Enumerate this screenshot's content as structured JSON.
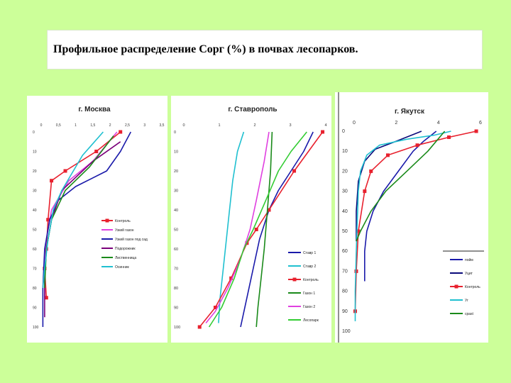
{
  "page": {
    "title": "Профильное распределение Сорг (%) в почвах лесопарков."
  },
  "chart_data": [
    {
      "type": "line",
      "title": "г. Москва",
      "x_ticks": [
        "0",
        "0,5",
        "1",
        "1,5",
        "2",
        "2,5",
        "3",
        "3,5"
      ],
      "y_ticks": [
        "0",
        "10",
        "20",
        "30",
        "40",
        "50",
        "60",
        "70",
        "80",
        "90",
        "100"
      ],
      "xlim": [
        0,
        3.5
      ],
      "ylim": [
        0,
        100
      ],
      "legend_position": "right",
      "series": [
        {
          "name": "Контроль",
          "color": "#e8212e",
          "marker": "square",
          "points": [
            [
              2.3,
              0
            ],
            [
              1.6,
              10
            ],
            [
              0.7,
              20
            ],
            [
              0.3,
              25
            ],
            [
              0.2,
              45
            ],
            [
              0.15,
              60
            ],
            [
              0.1,
              70
            ],
            [
              0.15,
              85
            ]
          ]
        },
        {
          "name": "Узкий газон",
          "color": "#e040e0",
          "marker": "none",
          "points": [
            [
              2.2,
              0
            ],
            [
              1.5,
              15
            ],
            [
              0.8,
              25
            ],
            [
              0.3,
              40
            ],
            [
              0.15,
              55
            ],
            [
              0.1,
              70
            ],
            [
              0.1,
              85
            ]
          ]
        },
        {
          "name": "Узкий газон под сад",
          "color": "#1a1aaa",
          "marker": "none",
          "points": [
            [
              2.6,
              0
            ],
            [
              2.3,
              10
            ],
            [
              1.9,
              20
            ],
            [
              1.0,
              28
            ],
            [
              0.5,
              35
            ],
            [
              0.25,
              45
            ],
            [
              0.1,
              60
            ],
            [
              0.05,
              80
            ],
            [
              0.05,
              100
            ]
          ]
        },
        {
          "name": "Подорожник",
          "color": "#7a007a",
          "marker": "none",
          "points": [
            [
              2.3,
              5
            ],
            [
              1.5,
              15
            ],
            [
              0.6,
              30
            ],
            [
              0.3,
              45
            ],
            [
              0.15,
              60
            ],
            [
              0.1,
              75
            ],
            [
              0.1,
              95
            ]
          ]
        },
        {
          "name": "Лиственница",
          "color": "#1a8a1a",
          "marker": "none",
          "points": [
            [
              2.1,
              2
            ],
            [
              1.4,
              18
            ],
            [
              0.7,
              30
            ],
            [
              0.3,
              45
            ],
            [
              0.15,
              60
            ],
            [
              0.1,
              80
            ]
          ]
        },
        {
          "name": "Осинник",
          "color": "#20c0d0",
          "marker": "none",
          "points": [
            [
              1.8,
              0
            ],
            [
              1.2,
              12
            ],
            [
              0.6,
              30
            ],
            [
              0.35,
              40
            ],
            [
              0.2,
              55
            ],
            [
              0.1,
              70
            ],
            [
              0.05,
              80
            ]
          ]
        }
      ]
    },
    {
      "type": "line",
      "title": "г. Ставрополь",
      "x_ticks": [
        "0",
        "1",
        "2",
        "3",
        "4"
      ],
      "y_ticks": [
        "0",
        "10",
        "20",
        "30",
        "40",
        "50",
        "60",
        "70",
        "80",
        "90",
        "100"
      ],
      "xlim": [
        0,
        4.5
      ],
      "ylim": [
        0,
        100
      ],
      "legend_position": "bottom-right",
      "series": [
        {
          "name": "Ставр 1",
          "color": "#1a1aaa",
          "marker": "none",
          "points": [
            [
              4.1,
              0
            ],
            [
              3.8,
              10
            ],
            [
              3.4,
              20
            ],
            [
              3.0,
              30
            ],
            [
              2.7,
              40
            ],
            [
              2.4,
              55
            ],
            [
              2.2,
              70
            ],
            [
              2.0,
              85
            ],
            [
              1.8,
              100
            ]
          ]
        },
        {
          "name": "Ставр 2",
          "color": "#20c0d0",
          "marker": "none",
          "points": [
            [
              1.9,
              0
            ],
            [
              1.7,
              10
            ],
            [
              1.55,
              25
            ],
            [
              1.45,
              40
            ],
            [
              1.35,
              55
            ],
            [
              1.25,
              70
            ],
            [
              1.15,
              85
            ],
            [
              1.1,
              98
            ]
          ]
        },
        {
          "name": "Контроль",
          "color": "#e8212e",
          "marker": "square",
          "points": [
            [
              4.4,
              0
            ],
            [
              3.5,
              20
            ],
            [
              2.7,
              40
            ],
            [
              2.3,
              50
            ],
            [
              2.0,
              57
            ],
            [
              1.5,
              75
            ],
            [
              1.0,
              90
            ],
            [
              0.5,
              100
            ]
          ]
        },
        {
          "name": "Газон 1",
          "color": "#1a8a1a",
          "marker": "none",
          "points": [
            [
              2.8,
              0
            ],
            [
              2.75,
              20
            ],
            [
              2.65,
              40
            ],
            [
              2.55,
              60
            ],
            [
              2.45,
              75
            ],
            [
              2.35,
              90
            ],
            [
              2.3,
              100
            ]
          ]
        },
        {
          "name": "Газон 2",
          "color": "#e040e0",
          "marker": "none",
          "points": [
            [
              2.7,
              0
            ],
            [
              2.55,
              15
            ],
            [
              2.3,
              35
            ],
            [
              2.1,
              50
            ],
            [
              1.8,
              65
            ],
            [
              1.4,
              80
            ],
            [
              1.0,
              92
            ],
            [
              0.7,
              98
            ]
          ]
        },
        {
          "name": "Лесопарк",
          "color": "#33cc33",
          "marker": "none",
          "points": [
            [
              3.9,
              0
            ],
            [
              3.4,
              10
            ],
            [
              3.0,
              20
            ],
            [
              2.6,
              35
            ],
            [
              2.2,
              50
            ],
            [
              1.9,
              60
            ],
            [
              1.6,
              75
            ],
            [
              1.2,
              90
            ],
            [
              0.8,
              100
            ]
          ]
        }
      ]
    },
    {
      "type": "line",
      "title": "г. Якутск",
      "x_ticks": [
        "0",
        "2",
        "4",
        "6"
      ],
      "y_ticks": [
        "0",
        "10",
        "20",
        "30",
        "40",
        "50",
        "60",
        "70",
        "80",
        "90",
        "100"
      ],
      "xlim": [
        0,
        6
      ],
      "ylim": [
        0,
        100
      ],
      "legend_position": "bottom-right",
      "series": [
        {
          "name": "пойм",
          "color": "#1a1aaa",
          "marker": "none",
          "points": [
            [
              3.9,
              0
            ],
            [
              3.3,
              5
            ],
            [
              2.8,
              10
            ],
            [
              2.1,
              20
            ],
            [
              1.4,
              30
            ],
            [
              0.9,
              40
            ],
            [
              0.6,
              50
            ],
            [
              0.5,
              60
            ],
            [
              0.5,
              75
            ]
          ]
        },
        {
          "name": "Уцит",
          "color": "#0a0a7a",
          "marker": "none",
          "points": [
            [
              3.2,
              0
            ],
            [
              2.0,
              5
            ],
            [
              1.0,
              9
            ],
            [
              0.5,
              15
            ],
            [
              0.2,
              25
            ],
            [
              0.1,
              40
            ],
            [
              0.1,
              55
            ]
          ]
        },
        {
          "name": "Контроль",
          "color": "#e8212e",
          "marker": "square",
          "points": [
            [
              5.8,
              0
            ],
            [
              4.5,
              3
            ],
            [
              3.0,
              7
            ],
            [
              1.6,
              12
            ],
            [
              0.8,
              20
            ],
            [
              0.5,
              30
            ],
            [
              0.2,
              50
            ],
            [
              0.1,
              70
            ],
            [
              0.05,
              90
            ]
          ]
        },
        {
          "name": "Уг",
          "color": "#20c0d0",
          "marker": "none",
          "points": [
            [
              4.6,
              0
            ],
            [
              3.8,
              2
            ],
            [
              2.5,
              4
            ],
            [
              1.2,
              7
            ],
            [
              0.6,
              12
            ],
            [
              0.3,
              20
            ],
            [
              0.2,
              30
            ],
            [
              0.15,
              45
            ],
            [
              0.1,
              60
            ],
            [
              0.05,
              80
            ],
            [
              0.05,
              95
            ]
          ]
        },
        {
          "name": "cpast",
          "color": "#1a8a1a",
          "marker": "none",
          "points": [
            [
              4.3,
              0
            ],
            [
              3.5,
              10
            ],
            [
              2.5,
              20
            ],
            [
              1.5,
              30
            ],
            [
              0.8,
              40
            ],
            [
              0.3,
              50
            ],
            [
              0.1,
              55
            ]
          ]
        }
      ]
    }
  ]
}
